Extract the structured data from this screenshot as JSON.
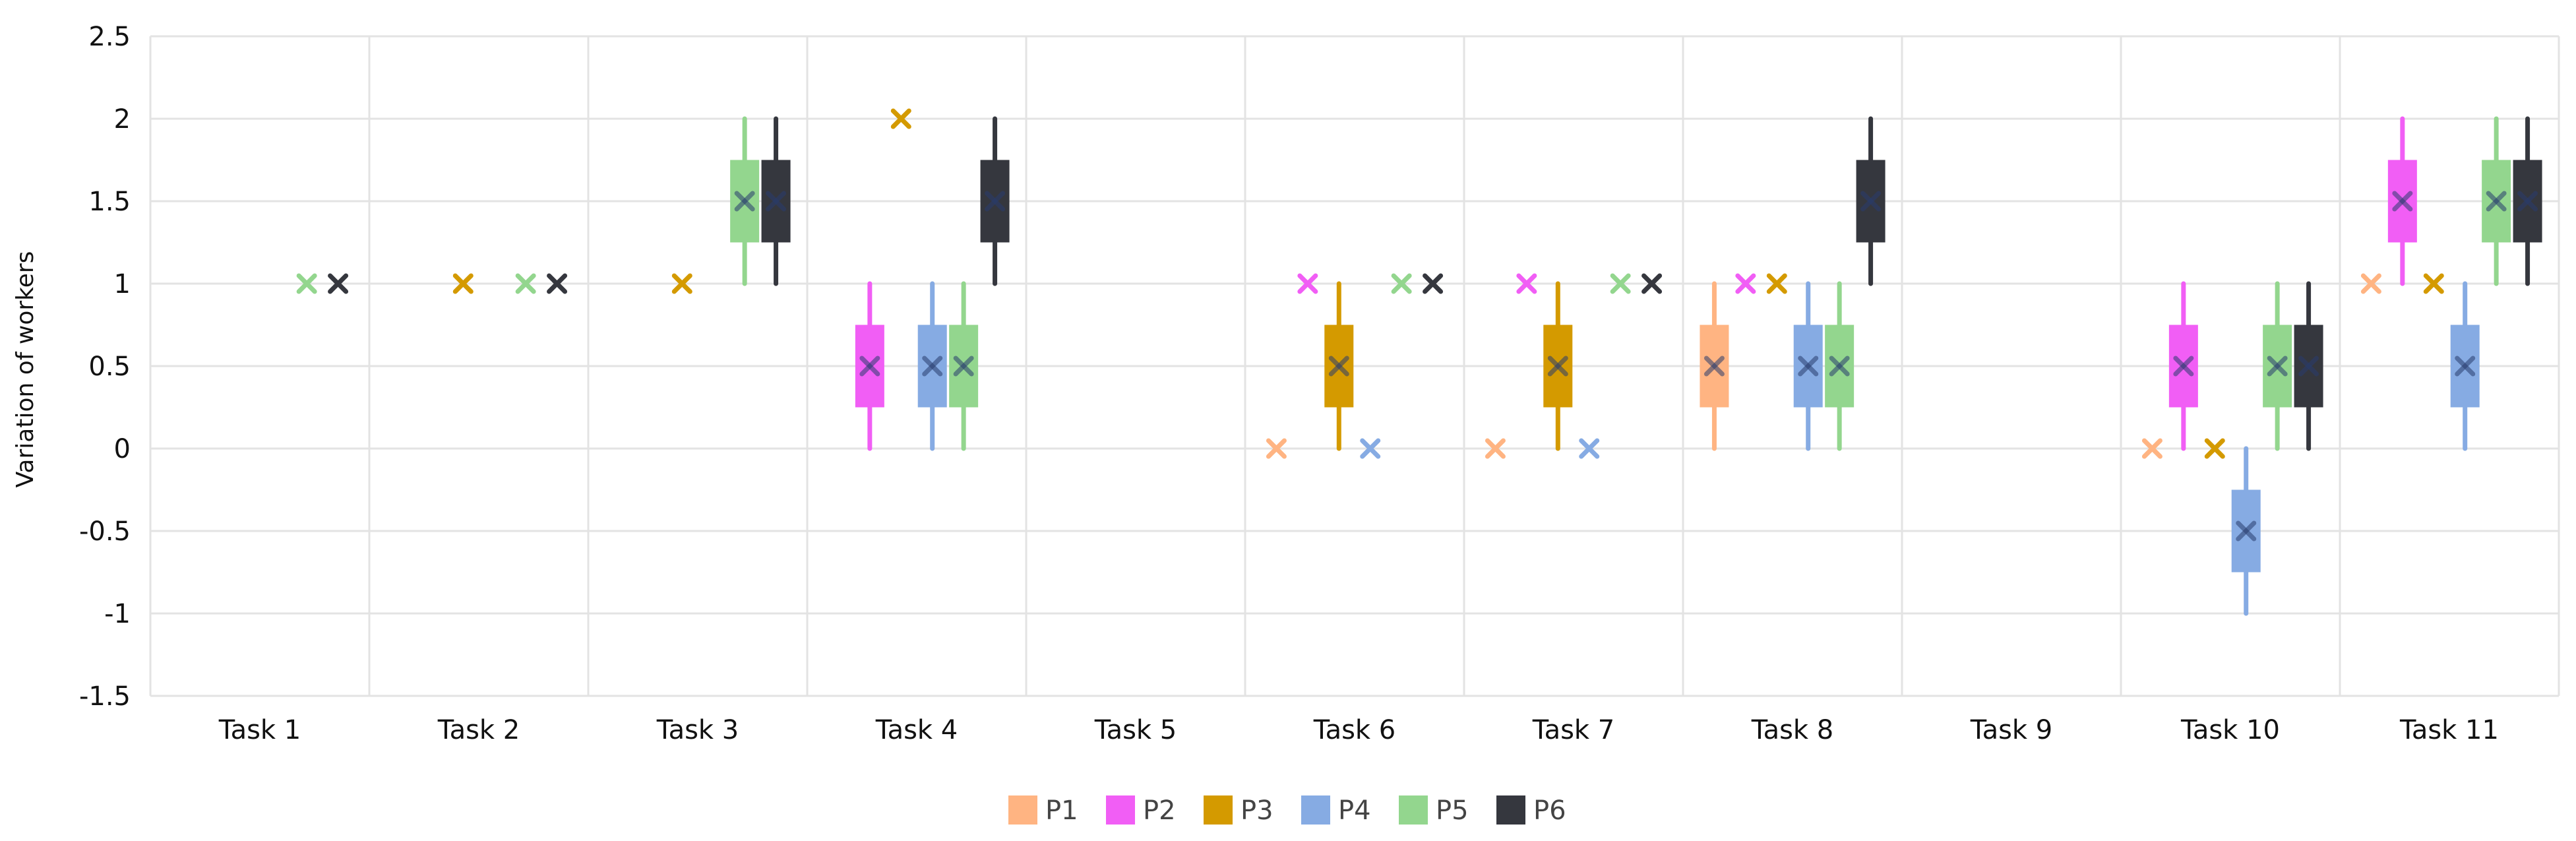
{
  "chart_data": {
    "type": "boxplot",
    "title": "",
    "xlabel": "",
    "ylabel": "Variation of workers",
    "ylim": [
      -1.5,
      2.5
    ],
    "yticks": [
      2.5,
      2,
      1.5,
      1,
      0.5,
      0,
      -0.5,
      -1,
      -1.5
    ],
    "ytick_labels": [
      "2.5",
      "2",
      "1.5",
      "1",
      "0.5",
      "0",
      "-0.5",
      "-1",
      "-1.5"
    ],
    "categories": [
      "Task 1",
      "Task 2",
      "Task 3",
      "Task 4",
      "Task 5",
      "Task 6",
      "Task 7",
      "Task 8",
      "Task 9",
      "Task 10",
      "Task 11"
    ],
    "grid": true,
    "legend_position": "bottom",
    "series": [
      {
        "name": "P1",
        "color": "#FFB482",
        "boxes": [
          null,
          null,
          null,
          null,
          null,
          {
            "min": 0,
            "q1": 0,
            "median": 0,
            "q3": 0,
            "max": 0,
            "mean": 0
          },
          {
            "min": 0,
            "q1": 0,
            "median": 0,
            "q3": 0,
            "max": 0,
            "mean": 0
          },
          {
            "min": 0,
            "q1": 0.25,
            "median": 0.5,
            "q3": 0.75,
            "max": 1,
            "mean": 0.5
          },
          null,
          {
            "min": 0,
            "q1": 0,
            "median": 0,
            "q3": 0,
            "max": 0,
            "mean": 0
          },
          {
            "min": 1,
            "q1": 1,
            "median": 1,
            "q3": 1,
            "max": 1,
            "mean": 1
          }
        ]
      },
      {
        "name": "P2",
        "color": "#F15EF5",
        "boxes": [
          null,
          null,
          null,
          {
            "min": 0,
            "q1": 0.25,
            "median": 0.5,
            "q3": 0.75,
            "max": 1,
            "mean": 0.5
          },
          null,
          {
            "min": 1,
            "q1": 1,
            "median": 1,
            "q3": 1,
            "max": 1,
            "mean": 1
          },
          {
            "min": 1,
            "q1": 1,
            "median": 1,
            "q3": 1,
            "max": 1,
            "mean": 1
          },
          {
            "min": 1,
            "q1": 1,
            "median": 1,
            "q3": 1,
            "max": 1,
            "mean": 1
          },
          null,
          {
            "min": 0,
            "q1": 0.25,
            "median": 0.5,
            "q3": 0.75,
            "max": 1,
            "mean": 0.5
          },
          {
            "min": 1,
            "q1": 1.25,
            "median": 1.5,
            "q3": 1.75,
            "max": 2,
            "mean": 1.5
          }
        ]
      },
      {
        "name": "P3",
        "color": "#D49A00",
        "boxes": [
          null,
          {
            "min": 1,
            "q1": 1,
            "median": 1,
            "q3": 1,
            "max": 1,
            "mean": 1
          },
          {
            "min": 1,
            "q1": 1,
            "median": 1,
            "q3": 1,
            "max": 1,
            "mean": 1
          },
          {
            "min": 2,
            "q1": 2,
            "median": 2,
            "q3": 2,
            "max": 2,
            "mean": 2
          },
          null,
          {
            "min": 0,
            "q1": 0.25,
            "median": 0.5,
            "q3": 0.75,
            "max": 1,
            "mean": 0.5
          },
          {
            "min": 0,
            "q1": 0.25,
            "median": 0.5,
            "q3": 0.75,
            "max": 1,
            "mean": 0.5
          },
          {
            "min": 1,
            "q1": 1,
            "median": 1,
            "q3": 1,
            "max": 1,
            "mean": 1
          },
          null,
          {
            "min": 0,
            "q1": 0,
            "median": 0,
            "q3": 0,
            "max": 0,
            "mean": 0
          },
          {
            "min": 1,
            "q1": 1,
            "median": 1,
            "q3": 1,
            "max": 1,
            "mean": 1
          }
        ]
      },
      {
        "name": "P4",
        "color": "#86ABE3",
        "boxes": [
          null,
          null,
          null,
          {
            "min": 0,
            "q1": 0.25,
            "median": 0.5,
            "q3": 0.75,
            "max": 1,
            "mean": 0.5
          },
          null,
          {
            "min": 0,
            "q1": 0,
            "median": 0,
            "q3": 0,
            "max": 0,
            "mean": 0
          },
          {
            "min": 0,
            "q1": 0,
            "median": 0,
            "q3": 0,
            "max": 0,
            "mean": 0
          },
          {
            "min": 0,
            "q1": 0.25,
            "median": 0.5,
            "q3": 0.75,
            "max": 1,
            "mean": 0.5
          },
          null,
          {
            "min": -1,
            "q1": -0.75,
            "median": -0.5,
            "q3": -0.25,
            "max": 0,
            "mean": -0.5
          },
          {
            "min": 0,
            "q1": 0.25,
            "median": 0.5,
            "q3": 0.75,
            "max": 1,
            "mean": 0.5
          }
        ]
      },
      {
        "name": "P5",
        "color": "#93D68E",
        "boxes": [
          {
            "min": 1,
            "q1": 1,
            "median": 1,
            "q3": 1,
            "max": 1,
            "mean": 1
          },
          {
            "min": 1,
            "q1": 1,
            "median": 1,
            "q3": 1,
            "max": 1,
            "mean": 1
          },
          {
            "min": 1,
            "q1": 1.25,
            "median": 1.5,
            "q3": 1.75,
            "max": 2,
            "mean": 1.5
          },
          {
            "min": 0,
            "q1": 0.25,
            "median": 0.5,
            "q3": 0.75,
            "max": 1,
            "mean": 0.5
          },
          null,
          {
            "min": 1,
            "q1": 1,
            "median": 1,
            "q3": 1,
            "max": 1,
            "mean": 1
          },
          {
            "min": 1,
            "q1": 1,
            "median": 1,
            "q3": 1,
            "max": 1,
            "mean": 1
          },
          {
            "min": 0,
            "q1": 0.25,
            "median": 0.5,
            "q3": 0.75,
            "max": 1,
            "mean": 0.5
          },
          null,
          {
            "min": 0,
            "q1": 0.25,
            "median": 0.5,
            "q3": 0.75,
            "max": 1,
            "mean": 0.5
          },
          {
            "min": 1,
            "q1": 1.25,
            "median": 1.5,
            "q3": 1.75,
            "max": 2,
            "mean": 1.5
          }
        ]
      },
      {
        "name": "P6",
        "color": "#35373E",
        "boxes": [
          {
            "min": 1,
            "q1": 1,
            "median": 1,
            "q3": 1,
            "max": 1,
            "mean": 1
          },
          {
            "min": 1,
            "q1": 1,
            "median": 1,
            "q3": 1,
            "max": 1,
            "mean": 1
          },
          {
            "min": 1,
            "q1": 1.25,
            "median": 1.5,
            "q3": 1.75,
            "max": 2,
            "mean": 1.5
          },
          {
            "min": 1,
            "q1": 1.25,
            "median": 1.5,
            "q3": 1.75,
            "max": 2,
            "mean": 1.5
          },
          null,
          {
            "min": 1,
            "q1": 1,
            "median": 1,
            "q3": 1,
            "max": 1,
            "mean": 1
          },
          {
            "min": 1,
            "q1": 1,
            "median": 1,
            "q3": 1,
            "max": 1,
            "mean": 1
          },
          {
            "min": 1,
            "q1": 1.25,
            "median": 1.5,
            "q3": 1.75,
            "max": 2,
            "mean": 1.5
          },
          null,
          {
            "min": 0,
            "q1": 0.25,
            "median": 0.5,
            "q3": 0.75,
            "max": 1,
            "mean": 0.5
          },
          {
            "min": 1,
            "q1": 1.25,
            "median": 1.5,
            "q3": 1.75,
            "max": 2,
            "mean": 1.5
          }
        ]
      }
    ]
  }
}
